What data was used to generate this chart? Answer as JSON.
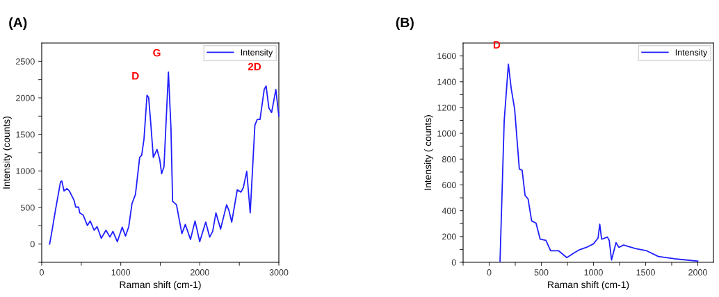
{
  "chart_data": [
    {
      "type": "line",
      "title": "(A)",
      "xlabel": "Raman shift (cm-1)",
      "ylabel": "Intensity (counts)",
      "xlim": [
        0,
        3000
      ],
      "ylim": [
        -250,
        2750
      ],
      "xticks": [
        0,
        {
          "value": 500,
          "label": null
        },
        1000,
        {
          "value": 1500,
          "label": null
        },
        2000,
        {
          "value": 2500,
          "label": null
        },
        3000
      ],
      "yticks": [
        {
          "value": -250,
          "label": null
        },
        0,
        {
          "value": 250,
          "label": null
        },
        500,
        {
          "value": 750,
          "label": null
        },
        1000,
        {
          "value": 1250,
          "label": null
        },
        1500,
        {
          "value": 1750,
          "label": null
        },
        2000,
        {
          "value": 2250,
          "label": null
        },
        2500
      ],
      "legend": "top right",
      "grid": false,
      "annotations": [
        {
          "text": "D",
          "x": 1332,
          "y": 2036
        },
        {
          "text": "G",
          "x": 1603,
          "y": 2352
        },
        {
          "text": "2D",
          "x": 2839,
          "y": 2162
        }
      ],
      "series": [
        {
          "name": "Intensity",
          "color": "#2020ff",
          "x": [
            100,
            129,
            173,
            238,
            255,
            282,
            320,
            349,
            408,
            431,
            467,
            481,
            525,
            578,
            613,
            663,
            701,
            754,
            813,
            863,
            901,
            957,
            1018,
            1060,
            1101,
            1142,
            1186,
            1239,
            1265,
            1294,
            1332,
            1353,
            1377,
            1412,
            1459,
            1494,
            1517,
            1547,
            1603,
            1635,
            1656,
            1705,
            1773,
            1817,
            1882,
            1940,
            1999,
            2075,
            2125,
            2163,
            2204,
            2263,
            2339,
            2369,
            2404,
            2474,
            2521,
            2551,
            2594,
            2638,
            2697,
            2727,
            2762,
            2815,
            2839,
            2874,
            2909,
            2962,
            3000
          ],
          "values": [
            0,
            174,
            458,
            852,
            862,
            726,
            758,
            726,
            600,
            505,
            505,
            426,
            395,
            253,
            316,
            189,
            237,
            79,
            189,
            95,
            174,
            32,
            230,
            110,
            237,
            552,
            679,
            1184,
            1215,
            1436,
            2036,
            2004,
            1689,
            1184,
            1294,
            1152,
            963,
            1058,
            2352,
            1594,
            584,
            537,
            142,
            268,
            63,
            316,
            32,
            300,
            95,
            174,
            426,
            205,
            537,
            458,
            300,
            742,
            710,
            773,
            994,
            426,
            1626,
            1705,
            1705,
            2115,
            2162,
            1862,
            1799,
            2115,
            1752
          ]
        }
      ]
    },
    {
      "type": "line",
      "title": "(B)",
      "xlabel": "Raman shift (cm-1)",
      "ylabel": "Intensity ( counts)",
      "xlim": [
        -250,
        2150
      ],
      "ylim": [
        0,
        1700
      ],
      "xticks": [
        {
          "value": -250,
          "label": null
        },
        0,
        {
          "value": 250,
          "label": null
        },
        500,
        {
          "value": 750,
          "label": null
        },
        1000,
        {
          "value": 1250,
          "label": null
        },
        1500,
        {
          "value": 1750,
          "label": null
        },
        2000
      ],
      "yticks": [
        0,
        {
          "value": 100,
          "label": null
        },
        200,
        {
          "value": 300,
          "label": null
        },
        400,
        {
          "value": 500,
          "label": null
        },
        600,
        {
          "value": 700,
          "label": null
        },
        800,
        {
          "value": 900,
          "label": null
        },
        1000,
        {
          "value": 1100,
          "label": null
        },
        1200,
        {
          "value": 1300,
          "label": null
        },
        1400,
        {
          "value": 1500,
          "label": null
        },
        1600
      ],
      "legend": "top right",
      "grid": false,
      "annotations": [
        {
          "text": "D",
          "x": 184,
          "y": 1536
        }
      ],
      "series": [
        {
          "name": "Intensity",
          "color": "#2020ff",
          "x": [
            104,
            144,
            184,
            211,
            244,
            289,
            316,
            344,
            373,
            407,
            449,
            489,
            544,
            589,
            667,
            744,
            811,
            867,
            933,
            1000,
            1044,
            1060,
            1078,
            1133,
            1151,
            1173,
            1216,
            1244,
            1289,
            1400,
            1511,
            1622,
            1778,
            2000
          ],
          "values": [
            9,
            1098,
            1536,
            1348,
            1188,
            723,
            714,
            518,
            491,
            321,
            304,
            179,
            170,
            89,
            89,
            36,
            71,
            98,
            116,
            143,
            188,
            295,
            179,
            196,
            170,
            18,
            152,
            116,
            134,
            107,
            89,
            45,
            27,
            9
          ]
        }
      ]
    }
  ]
}
